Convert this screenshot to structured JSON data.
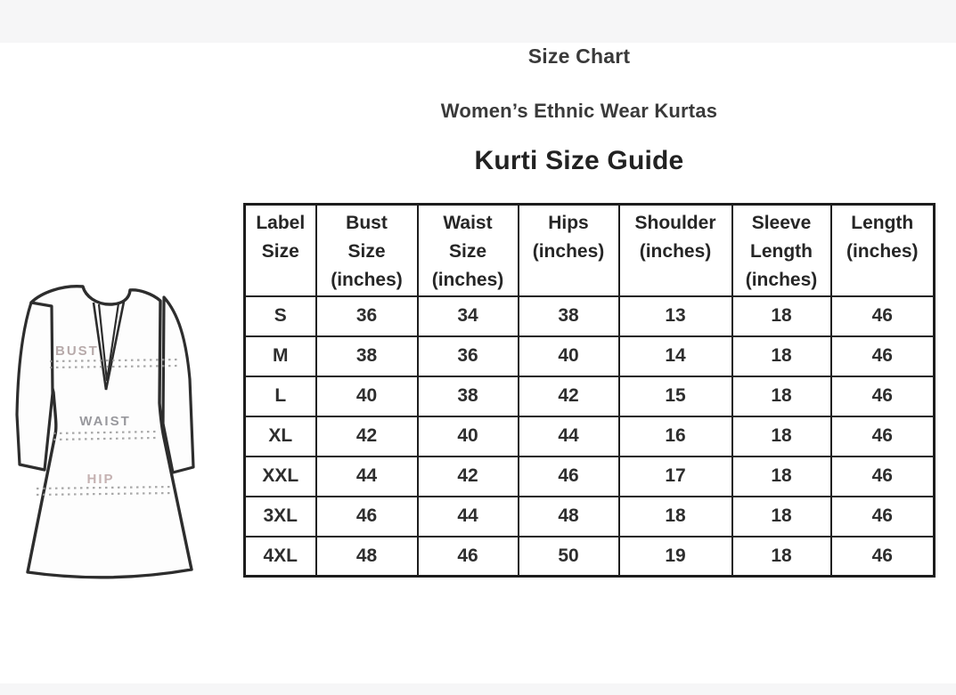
{
  "titles": {
    "main": "Size Chart",
    "subtitle": "Women’s Ethnic Wear Kurtas",
    "guide": "Kurti Size Guide"
  },
  "figure": {
    "bust_label": "BUST",
    "waist_label": "WAIST",
    "hip_label": "HIP"
  },
  "table": {
    "headers": [
      {
        "lines": [
          "Label",
          "Size"
        ]
      },
      {
        "lines": [
          "Bust",
          "Size",
          "(inches)"
        ]
      },
      {
        "lines": [
          "Waist",
          "Size",
          "(inches)"
        ]
      },
      {
        "lines": [
          "Hips",
          "(inches)"
        ]
      },
      {
        "lines": [
          "Shoulder",
          "(inches)"
        ]
      },
      {
        "lines": [
          "Sleeve",
          "Length",
          "(inches)"
        ]
      },
      {
        "lines": [
          "Length",
          "(inches)"
        ]
      }
    ],
    "rows": [
      {
        "label": "S",
        "values": [
          "36",
          "34",
          "38",
          "13",
          "18",
          "46"
        ]
      },
      {
        "label": "M",
        "values": [
          "38",
          "36",
          "40",
          "14",
          "18",
          "46"
        ]
      },
      {
        "label": "L",
        "values": [
          "40",
          "38",
          "42",
          "15",
          "18",
          "46"
        ]
      },
      {
        "label": "XL",
        "values": [
          "42",
          "40",
          "44",
          "16",
          "18",
          "46"
        ]
      },
      {
        "label": "XXL",
        "values": [
          "44",
          "42",
          "46",
          "17",
          "18",
          "46"
        ]
      },
      {
        "label": "3XL",
        "values": [
          "46",
          "44",
          "48",
          "18",
          "18",
          "46"
        ]
      },
      {
        "label": "4XL",
        "values": [
          "48",
          "46",
          "50",
          "19",
          "18",
          "46"
        ]
      }
    ]
  },
  "colors": {
    "table_border": "#1d1d1d",
    "body_text": "#2a2a2a",
    "figure_outline": "#2d2d2d",
    "bust_label_color": "#b0a2a2",
    "waist_label_color": "#8e8e93",
    "hip_label_color": "#bfaaaa",
    "measure_dots": "#9a9a9a"
  },
  "chart_data": {
    "type": "table",
    "title": "Kurti Size Guide",
    "columns": [
      "Label Size",
      "Bust Size (inches)",
      "Waist Size (inches)",
      "Hips (inches)",
      "Shoulder (inches)",
      "Sleeve Length (inches)",
      "Length (inches)"
    ],
    "rows": [
      [
        "S",
        36,
        34,
        38,
        13,
        18,
        46
      ],
      [
        "M",
        38,
        36,
        40,
        14,
        18,
        46
      ],
      [
        "L",
        40,
        38,
        42,
        15,
        18,
        46
      ],
      [
        "XL",
        42,
        40,
        44,
        16,
        18,
        46
      ],
      [
        "XXL",
        44,
        42,
        46,
        17,
        18,
        46
      ],
      [
        "3XL",
        46,
        44,
        48,
        18,
        18,
        46
      ],
      [
        "4XL",
        48,
        46,
        50,
        19,
        18,
        46
      ]
    ]
  }
}
